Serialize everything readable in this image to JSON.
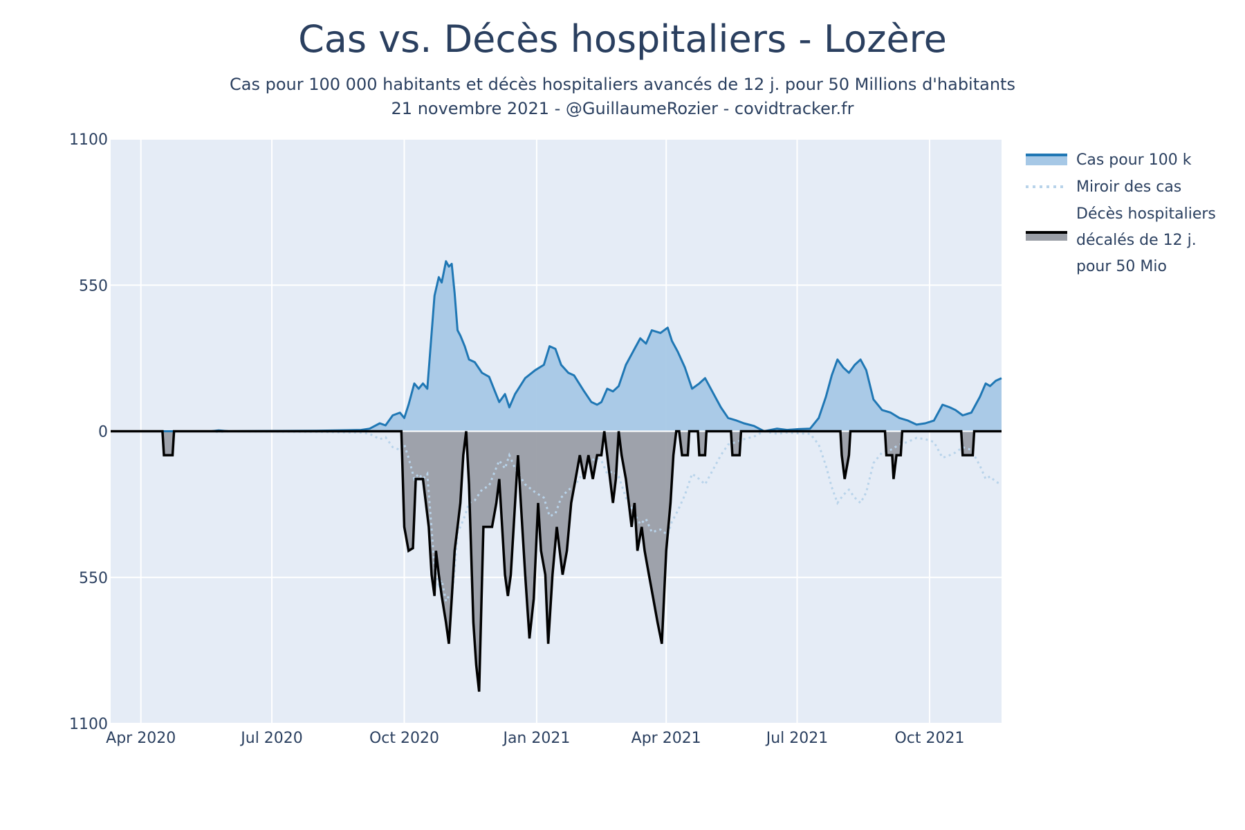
{
  "chart_data": {
    "type": "area",
    "title": "Cas vs. Décès hospitaliers - Lozère",
    "subtitle_lines": [
      "Cas pour 100 000 habitants et décès hospitaliers avancés de 12 j. pour 50 Millions d'habitants",
      "21 novembre 2021 - @GuillaumeRozier - covidtracker.fr"
    ],
    "xlabel": "",
    "ylabel": "",
    "x_range": [
      "2020-03-11",
      "2021-11-20"
    ],
    "y_range": [
      -1100,
      1100
    ],
    "y_ticks": [
      {
        "value": 1100,
        "label": "1100"
      },
      {
        "value": 550,
        "label": "550"
      },
      {
        "value": 0,
        "label": "0"
      },
      {
        "value": -550,
        "label": "550"
      },
      {
        "value": -1100,
        "label": "1100"
      }
    ],
    "x_ticks": [
      {
        "date": "2020-04-01",
        "label": "Apr 2020"
      },
      {
        "date": "2020-07-01",
        "label": "Jul 2020"
      },
      {
        "date": "2020-10-01",
        "label": "Oct 2020"
      },
      {
        "date": "2021-01-01",
        "label": "Jan 2021"
      },
      {
        "date": "2021-04-01",
        "label": "Apr 2021"
      },
      {
        "date": "2021-07-01",
        "label": "Jul 2021"
      },
      {
        "date": "2021-10-01",
        "label": "Oct 2021"
      }
    ],
    "grid": true,
    "legend_position": "right",
    "series": [
      {
        "name": "Cas pour 100 k",
        "color": "#1f77b4",
        "fill": "#a6c8e6",
        "style": "solid",
        "points": [
          [
            "2020-03-11",
            0
          ],
          [
            "2020-05-20",
            0
          ],
          [
            "2020-05-25",
            3
          ],
          [
            "2020-06-01",
            0
          ],
          [
            "2020-08-01",
            2
          ],
          [
            "2020-09-01",
            5
          ],
          [
            "2020-09-07",
            10
          ],
          [
            "2020-09-14",
            30
          ],
          [
            "2020-09-18",
            22
          ],
          [
            "2020-09-23",
            60
          ],
          [
            "2020-09-28",
            70
          ],
          [
            "2020-10-01",
            50
          ],
          [
            "2020-10-04",
            100
          ],
          [
            "2020-10-08",
            180
          ],
          [
            "2020-10-11",
            160
          ],
          [
            "2020-10-14",
            180
          ],
          [
            "2020-10-17",
            160
          ],
          [
            "2020-10-22",
            510
          ],
          [
            "2020-10-25",
            580
          ],
          [
            "2020-10-27",
            560
          ],
          [
            "2020-10-30",
            640
          ],
          [
            "2020-11-01",
            620
          ],
          [
            "2020-11-03",
            630
          ],
          [
            "2020-11-05",
            520
          ],
          [
            "2020-11-07",
            380
          ],
          [
            "2020-11-09",
            360
          ],
          [
            "2020-11-12",
            320
          ],
          [
            "2020-11-15",
            270
          ],
          [
            "2020-11-19",
            260
          ],
          [
            "2020-11-24",
            220
          ],
          [
            "2020-11-29",
            205
          ],
          [
            "2020-12-03",
            150
          ],
          [
            "2020-12-06",
            110
          ],
          [
            "2020-12-10",
            140
          ],
          [
            "2020-12-13",
            90
          ],
          [
            "2020-12-17",
            140
          ],
          [
            "2020-12-24",
            200
          ],
          [
            "2020-12-31",
            230
          ],
          [
            "2021-01-06",
            250
          ],
          [
            "2021-01-10",
            320
          ],
          [
            "2021-01-14",
            310
          ],
          [
            "2021-01-18",
            250
          ],
          [
            "2021-01-23",
            220
          ],
          [
            "2021-01-27",
            210
          ],
          [
            "2021-02-03",
            150
          ],
          [
            "2021-02-08",
            110
          ],
          [
            "2021-02-12",
            100
          ],
          [
            "2021-02-15",
            110
          ],
          [
            "2021-02-19",
            160
          ],
          [
            "2021-02-23",
            150
          ],
          [
            "2021-02-27",
            170
          ],
          [
            "2021-03-04",
            250
          ],
          [
            "2021-03-10",
            310
          ],
          [
            "2021-03-14",
            350
          ],
          [
            "2021-03-18",
            330
          ],
          [
            "2021-03-22",
            380
          ],
          [
            "2021-03-28",
            370
          ],
          [
            "2021-04-02",
            390
          ],
          [
            "2021-04-05",
            340
          ],
          [
            "2021-04-09",
            300
          ],
          [
            "2021-04-14",
            240
          ],
          [
            "2021-04-19",
            160
          ],
          [
            "2021-04-24",
            180
          ],
          [
            "2021-04-28",
            200
          ],
          [
            "2021-05-04",
            140
          ],
          [
            "2021-05-09",
            90
          ],
          [
            "2021-05-14",
            50
          ],
          [
            "2021-05-20",
            40
          ],
          [
            "2021-05-25",
            30
          ],
          [
            "2021-06-01",
            20
          ],
          [
            "2021-06-08",
            0
          ],
          [
            "2021-06-17",
            10
          ],
          [
            "2021-06-24",
            5
          ],
          [
            "2021-07-02",
            8
          ],
          [
            "2021-07-10",
            10
          ],
          [
            "2021-07-16",
            50
          ],
          [
            "2021-07-21",
            130
          ],
          [
            "2021-07-25",
            210
          ],
          [
            "2021-07-29",
            270
          ],
          [
            "2021-08-02",
            240
          ],
          [
            "2021-08-06",
            220
          ],
          [
            "2021-08-10",
            250
          ],
          [
            "2021-08-14",
            270
          ],
          [
            "2021-08-18",
            230
          ],
          [
            "2021-08-23",
            120
          ],
          [
            "2021-08-29",
            80
          ],
          [
            "2021-09-04",
            70
          ],
          [
            "2021-09-10",
            50
          ],
          [
            "2021-09-16",
            40
          ],
          [
            "2021-09-22",
            25
          ],
          [
            "2021-09-28",
            30
          ],
          [
            "2021-10-04",
            40
          ],
          [
            "2021-10-10",
            100
          ],
          [
            "2021-10-15",
            90
          ],
          [
            "2021-10-19",
            80
          ],
          [
            "2021-10-24",
            60
          ],
          [
            "2021-10-30",
            70
          ],
          [
            "2021-11-05",
            130
          ],
          [
            "2021-11-09",
            180
          ],
          [
            "2021-11-12",
            170
          ],
          [
            "2021-11-16",
            190
          ],
          [
            "2021-11-20",
            200
          ]
        ]
      },
      {
        "name": "Miroir des cas",
        "color": "#b8d3ea",
        "style": "dotted",
        "mirror_of": "Cas pour 100 k"
      },
      {
        "name": "Décès hospitaliers décalés de 12 j. pour 50 Mio",
        "legend_lines": [
          "Décès hospitaliers",
          "décalés de 12 j.",
          "pour 50 Mio"
        ],
        "color": "#000000",
        "fill": "#9a9ea6",
        "style": "solid",
        "negative": true,
        "points": [
          [
            "2020-03-11",
            0
          ],
          [
            "2020-04-16",
            0
          ],
          [
            "2020-04-17",
            90
          ],
          [
            "2020-04-23",
            90
          ],
          [
            "2020-04-24",
            0
          ],
          [
            "2020-09-29",
            0
          ],
          [
            "2020-10-01",
            360
          ],
          [
            "2020-10-04",
            450
          ],
          [
            "2020-10-07",
            440
          ],
          [
            "2020-10-09",
            180
          ],
          [
            "2020-10-14",
            180
          ],
          [
            "2020-10-16",
            270
          ],
          [
            "2020-10-18",
            360
          ],
          [
            "2020-10-20",
            540
          ],
          [
            "2020-10-22",
            620
          ],
          [
            "2020-10-23",
            450
          ],
          [
            "2020-10-25",
            540
          ],
          [
            "2020-10-27",
            620
          ],
          [
            "2020-10-30",
            720
          ],
          [
            "2020-11-01",
            800
          ],
          [
            "2020-11-03",
            630
          ],
          [
            "2020-11-05",
            450
          ],
          [
            "2020-11-07",
            360
          ],
          [
            "2020-11-09",
            270
          ],
          [
            "2020-11-11",
            90
          ],
          [
            "2020-11-13",
            0
          ],
          [
            "2020-11-15",
            200
          ],
          [
            "2020-11-18",
            720
          ],
          [
            "2020-11-20",
            880
          ],
          [
            "2020-11-22",
            980
          ],
          [
            "2020-11-25",
            360
          ],
          [
            "2020-12-01",
            360
          ],
          [
            "2020-12-04",
            270
          ],
          [
            "2020-12-06",
            180
          ],
          [
            "2020-12-08",
            360
          ],
          [
            "2020-12-10",
            540
          ],
          [
            "2020-12-12",
            620
          ],
          [
            "2020-12-14",
            540
          ],
          [
            "2020-12-17",
            270
          ],
          [
            "2020-12-19",
            90
          ],
          [
            "2020-12-21",
            270
          ],
          [
            "2020-12-24",
            540
          ],
          [
            "2020-12-27",
            780
          ],
          [
            "2020-12-30",
            630
          ],
          [
            "2021-01-02",
            270
          ],
          [
            "2021-01-04",
            450
          ],
          [
            "2021-01-07",
            540
          ],
          [
            "2021-01-09",
            800
          ],
          [
            "2021-01-12",
            540
          ],
          [
            "2021-01-15",
            360
          ],
          [
            "2021-01-19",
            540
          ],
          [
            "2021-01-22",
            450
          ],
          [
            "2021-01-25",
            270
          ],
          [
            "2021-01-28",
            180
          ],
          [
            "2021-01-31",
            90
          ],
          [
            "2021-02-03",
            180
          ],
          [
            "2021-02-06",
            90
          ],
          [
            "2021-02-09",
            180
          ],
          [
            "2021-02-12",
            90
          ],
          [
            "2021-02-15",
            90
          ],
          [
            "2021-02-17",
            0
          ],
          [
            "2021-02-19",
            90
          ],
          [
            "2021-02-21",
            180
          ],
          [
            "2021-02-23",
            270
          ],
          [
            "2021-02-25",
            180
          ],
          [
            "2021-02-27",
            0
          ],
          [
            "2021-03-01",
            90
          ],
          [
            "2021-03-04",
            180
          ],
          [
            "2021-03-06",
            270
          ],
          [
            "2021-03-08",
            360
          ],
          [
            "2021-03-10",
            270
          ],
          [
            "2021-03-12",
            450
          ],
          [
            "2021-03-15",
            360
          ],
          [
            "2021-03-17",
            450
          ],
          [
            "2021-03-20",
            540
          ],
          [
            "2021-03-23",
            630
          ],
          [
            "2021-03-26",
            720
          ],
          [
            "2021-03-29",
            800
          ],
          [
            "2021-04-01",
            450
          ],
          [
            "2021-04-04",
            270
          ],
          [
            "2021-04-06",
            90
          ],
          [
            "2021-04-08",
            0
          ],
          [
            "2021-04-10",
            0
          ],
          [
            "2021-04-12",
            90
          ],
          [
            "2021-04-16",
            90
          ],
          [
            "2021-04-17",
            0
          ],
          [
            "2021-04-23",
            0
          ],
          [
            "2021-04-24",
            90
          ],
          [
            "2021-04-28",
            90
          ],
          [
            "2021-04-29",
            0
          ],
          [
            "2021-05-16",
            0
          ],
          [
            "2021-05-17",
            90
          ],
          [
            "2021-05-22",
            90
          ],
          [
            "2021-05-23",
            0
          ],
          [
            "2021-07-31",
            0
          ],
          [
            "2021-08-01",
            90
          ],
          [
            "2021-08-03",
            180
          ],
          [
            "2021-08-06",
            90
          ],
          [
            "2021-08-07",
            0
          ],
          [
            "2021-08-31",
            0
          ],
          [
            "2021-09-01",
            90
          ],
          [
            "2021-09-05",
            90
          ],
          [
            "2021-09-06",
            180
          ],
          [
            "2021-09-08",
            90
          ],
          [
            "2021-09-11",
            90
          ],
          [
            "2021-09-12",
            0
          ],
          [
            "2021-10-23",
            0
          ],
          [
            "2021-10-24",
            90
          ],
          [
            "2021-10-31",
            90
          ],
          [
            "2021-11-01",
            0
          ],
          [
            "2021-11-20",
            0
          ]
        ]
      }
    ]
  }
}
